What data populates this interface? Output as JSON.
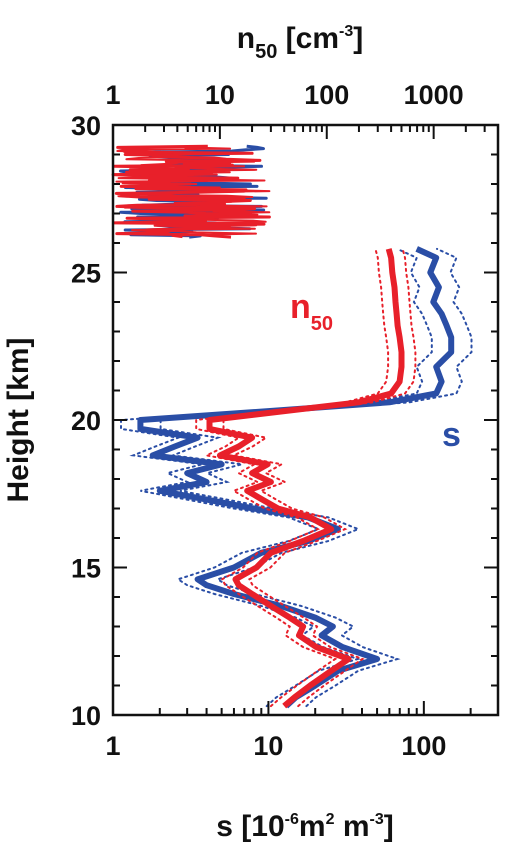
{
  "chart_data": {
    "type": "line",
    "title": "",
    "xlabel_bottom": {
      "main": "s [10",
      "sup": "-6",
      "mid": "m",
      "sup2": "2",
      "end": " m",
      "sup3": "-3",
      "close": "]"
    },
    "xlabel_top": {
      "main": "n",
      "sub": "50",
      "mid": " [cm",
      "sup": "-3",
      "close": "]"
    },
    "ylabel": "Height [km]",
    "x_bottom": {
      "scale": "log",
      "range": [
        1,
        300
      ],
      "ticks": [
        1,
        10,
        100
      ],
      "tick_labels": [
        "1",
        "10",
        "100"
      ]
    },
    "x_top": {
      "scale": "log",
      "range": [
        1,
        4000
      ],
      "ticks": [
        1,
        10,
        100,
        1000
      ],
      "tick_labels": [
        "1",
        "10",
        "100",
        "1000"
      ]
    },
    "y": {
      "scale": "linear",
      "range": [
        10,
        30
      ],
      "ticks": [
        10,
        15,
        20,
        25,
        30
      ],
      "tick_labels": [
        "10",
        "15",
        "20",
        "25",
        "30"
      ]
    },
    "grid": false,
    "legend": "none",
    "series": [
      {
        "name": "s",
        "label": {
          "main": "s",
          "sub": ""
        },
        "axis": "bottom",
        "color": "#2a4ea6",
        "height_km": [
          10.3,
          10.6,
          11.0,
          11.5,
          11.9,
          12.3,
          12.7,
          13.0,
          13.3,
          13.7,
          14.1,
          14.4,
          14.6,
          15.0,
          15.5,
          15.9,
          16.3,
          16.7,
          17.0,
          17.3,
          17.6,
          17.9,
          18.2,
          18.5,
          18.8,
          19.1,
          19.4,
          19.7,
          20.0,
          20.3,
          20.6,
          20.9,
          21.3,
          21.8,
          22.3,
          22.8,
          23.2,
          23.6,
          24.0,
          24.5,
          25.0,
          25.5,
          25.8
        ],
        "s_value": [
          13,
          15,
          20,
          28,
          50,
          30,
          22,
          26,
          20,
          12,
          6,
          4,
          3.5,
          6,
          9,
          18,
          28,
          18,
          8,
          4,
          2,
          4,
          3,
          5,
          1.8,
          2.5,
          3.5,
          1.5,
          1.5,
          10,
          60,
          120,
          130,
          120,
          150,
          150,
          140,
          130,
          115,
          125,
          110,
          120,
          90
        ]
      },
      {
        "name": "n50",
        "label": {
          "main": "n",
          "sub": "50"
        },
        "axis": "top",
        "color": "#e8202a",
        "height_km": [
          10.3,
          10.6,
          11.0,
          11.5,
          11.9,
          12.3,
          12.7,
          13.0,
          13.3,
          13.7,
          14.1,
          14.4,
          14.6,
          15.0,
          15.5,
          15.9,
          16.3,
          16.7,
          17.0,
          17.3,
          17.6,
          17.9,
          18.2,
          18.5,
          18.8,
          19.1,
          19.4,
          19.7,
          20.0,
          20.3,
          20.6,
          20.9,
          21.3,
          21.8,
          22.3,
          22.8,
          23.2,
          23.6,
          24.0,
          24.5,
          25.0,
          25.5,
          25.8
        ],
        "n_value": [
          40,
          50,
          70,
          110,
          160,
          80,
          55,
          60,
          45,
          30,
          20,
          15,
          14,
          22,
          30,
          60,
          110,
          70,
          35,
          25,
          18,
          30,
          20,
          28,
          10,
          15,
          20,
          8,
          8,
          40,
          200,
          400,
          480,
          500,
          500,
          480,
          460,
          450,
          440,
          430,
          410,
          400,
          380
        ]
      }
    ],
    "upper_noise_band_km": [
      26.2,
      29.3
    ],
    "s_upper_range": [
      1,
      10
    ],
    "n50_upper_range": [
      1,
      30
    ]
  }
}
